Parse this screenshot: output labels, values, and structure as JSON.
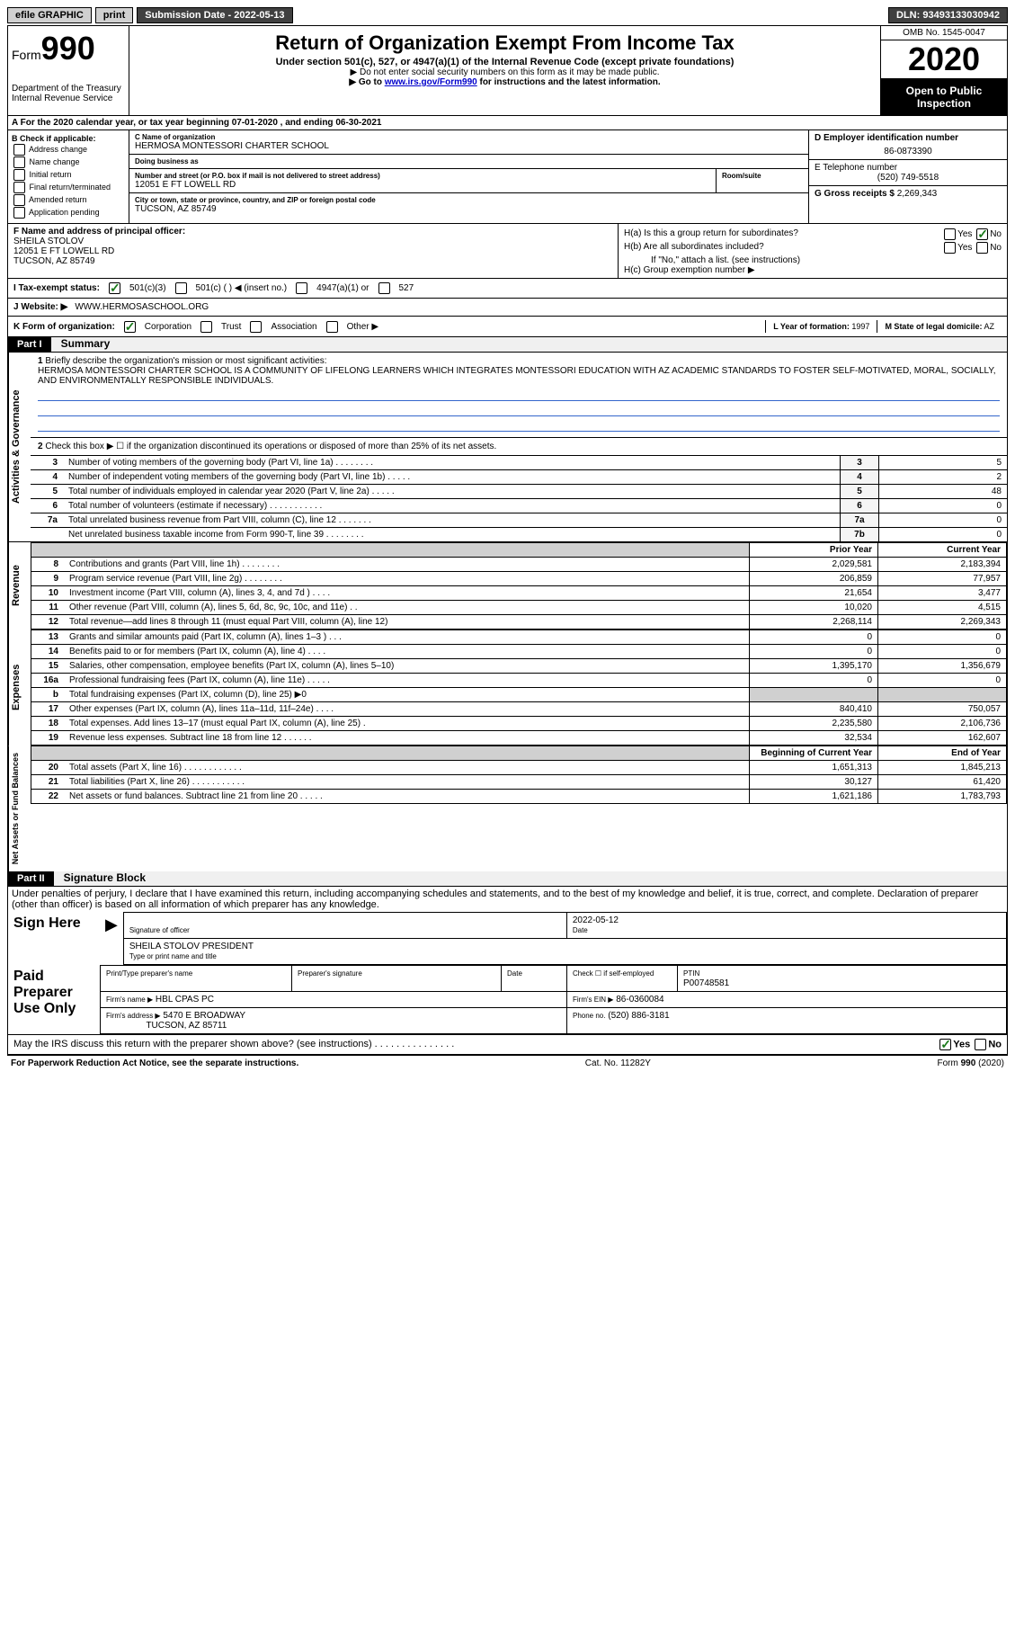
{
  "topbar": {
    "efile": "efile GRAPHIC",
    "print": "print",
    "submission": "Submission Date - 2022-05-13",
    "dln": "DLN: 93493133030942"
  },
  "header": {
    "form_prefix": "Form",
    "form_number": "990",
    "dept": "Department of the Treasury\nInternal Revenue Service",
    "title": "Return of Organization Exempt From Income Tax",
    "subtitle": "Under section 501(c), 527, or 4947(a)(1) of the Internal Revenue Code (except private foundations)",
    "note1": "▶ Do not enter social security numbers on this form as it may be made public.",
    "note2_pre": "▶ Go to ",
    "note2_link": "www.irs.gov/Form990",
    "note2_post": " for instructions and the latest information.",
    "omb": "OMB No. 1545-0047",
    "year": "2020",
    "open": "Open to Public Inspection"
  },
  "rowA": "A For the 2020 calendar year, or tax year beginning 07-01-2020  , and ending 06-30-2021",
  "boxB": {
    "heading": "B Check if applicable:",
    "opts": [
      "Address change",
      "Name change",
      "Initial return",
      "Final return/terminated",
      "Amended return",
      "Application pending"
    ]
  },
  "org": {
    "name_label": "C Name of organization",
    "name": "HERMOSA MONTESSORI CHARTER SCHOOL",
    "dba_label": "Doing business as",
    "dba": "",
    "addr_label": "Number and street (or P.O. box if mail is not delivered to street address)",
    "suite_label": "Room/suite",
    "street": "12051 E FT LOWELL RD",
    "city_label": "City or town, state or province, country, and ZIP or foreign postal code",
    "city": "TUCSON, AZ  85749"
  },
  "boxD": {
    "label": "D Employer identification number",
    "val": "86-0873390"
  },
  "boxE": {
    "label": "E Telephone number",
    "val": "(520) 749-5518"
  },
  "boxG": {
    "label": "G Gross receipts $",
    "val": "2,269,343"
  },
  "boxF": {
    "label": "F Name and address of principal officer:",
    "name": "SHEILA STOLOV",
    "street": "12051 E FT LOWELL RD",
    "city": "TUCSON, AZ  85749"
  },
  "boxH": {
    "a": "H(a)  Is this a group return for subordinates?",
    "b": "H(b)  Are all subordinates included?",
    "bnote": "If \"No,\" attach a list. (see instructions)",
    "c": "H(c)  Group exemption number ▶"
  },
  "status": {
    "label": "I   Tax-exempt status:",
    "o1": "501(c)(3)",
    "o2": "501(c) (  ) ◀ (insert no.)",
    "o3": "4947(a)(1) or",
    "o4": "527"
  },
  "website": {
    "label": "J   Website: ▶",
    "val": "WWW.HERMOSASCHOOL.ORG"
  },
  "korg": {
    "label": "K Form of organization:",
    "opts": [
      "Corporation",
      "Trust",
      "Association",
      "Other ▶"
    ],
    "yof_label": "L Year of formation:",
    "yof": "1997",
    "state_label": "M State of legal domicile:",
    "state": "AZ"
  },
  "part1": {
    "header": "Part I",
    "title": "Summary",
    "side_gov": "Activities & Governance",
    "side_rev": "Revenue",
    "side_exp": "Expenses",
    "side_net": "Net Assets or Fund Balances",
    "q1": "Briefly describe the organization's mission or most significant activities:",
    "mission": "HERMOSA MONTESSORI CHARTER SCHOOL IS A COMMUNITY OF LIFELONG LEARNERS WHICH INTEGRATES MONTESSORI EDUCATION WITH AZ ACADEMIC STANDARDS TO FOSTER SELF-MOTIVATED, MORAL, SOCIALLY, AND ENVIRONMENTALLY RESPONSIBLE INDIVIDUALS.",
    "q2": "Check this box ▶ ☐  if the organization discontinued its operations or disposed of more than 25% of its net assets.",
    "lines_gov": [
      {
        "n": "3",
        "t": "Number of voting members of the governing body (Part VI, line 1a)   .   .   .   .   .   .   .   .",
        "b": "3",
        "v": "5"
      },
      {
        "n": "4",
        "t": "Number of independent voting members of the governing body (Part VI, line 1b)   .   .   .   .   .",
        "b": "4",
        "v": "2"
      },
      {
        "n": "5",
        "t": "Total number of individuals employed in calendar year 2020 (Part V, line 2a)   .   .   .   .   .",
        "b": "5",
        "v": "48"
      },
      {
        "n": "6",
        "t": "Total number of volunteers (estimate if necessary)   .   .   .   .   .   .   .   .   .   .   .",
        "b": "6",
        "v": "0"
      },
      {
        "n": "7a",
        "t": "Total unrelated business revenue from Part VIII, column (C), line 12   .   .   .   .   .   .   .",
        "b": "7a",
        "v": "0"
      },
      {
        "n": "",
        "t": "Net unrelated business taxable income from Form 990-T, line 39   .   .   .   .   .   .   .   .",
        "b": "7b",
        "v": "0"
      }
    ],
    "col_prior": "Prior Year",
    "col_current": "Current Year",
    "lines_rev": [
      {
        "n": "8",
        "t": "Contributions and grants (Part VIII, line 1h)   .   .   .   .   .   .   .   .",
        "p": "2,029,581",
        "c": "2,183,394"
      },
      {
        "n": "9",
        "t": "Program service revenue (Part VIII, line 2g)   .   .   .   .   .   .   .   .",
        "p": "206,859",
        "c": "77,957"
      },
      {
        "n": "10",
        "t": "Investment income (Part VIII, column (A), lines 3, 4, and 7d )   .   .   .   .",
        "p": "21,654",
        "c": "3,477"
      },
      {
        "n": "11",
        "t": "Other revenue (Part VIII, column (A), lines 5, 6d, 8c, 9c, 10c, and 11e)   .   .",
        "p": "10,020",
        "c": "4,515"
      },
      {
        "n": "12",
        "t": "Total revenue—add lines 8 through 11 (must equal Part VIII, column (A), line 12)",
        "p": "2,268,114",
        "c": "2,269,343"
      }
    ],
    "lines_exp": [
      {
        "n": "13",
        "t": "Grants and similar amounts paid (Part IX, column (A), lines 1–3 )   .   .   .",
        "p": "0",
        "c": "0"
      },
      {
        "n": "14",
        "t": "Benefits paid to or for members (Part IX, column (A), line 4)   .   .   .   .",
        "p": "0",
        "c": "0"
      },
      {
        "n": "15",
        "t": "Salaries, other compensation, employee benefits (Part IX, column (A), lines 5–10)",
        "p": "1,395,170",
        "c": "1,356,679"
      },
      {
        "n": "16a",
        "t": "Professional fundraising fees (Part IX, column (A), line 11e)   .   .   .   .   .",
        "p": "0",
        "c": "0"
      },
      {
        "n": "b",
        "t": "Total fundraising expenses (Part IX, column (D), line 25) ▶0",
        "p": "",
        "c": "",
        "shade": true
      },
      {
        "n": "17",
        "t": "Other expenses (Part IX, column (A), lines 11a–11d, 11f–24e)   .   .   .   .",
        "p": "840,410",
        "c": "750,057"
      },
      {
        "n": "18",
        "t": "Total expenses. Add lines 13–17 (must equal Part IX, column (A), line 25)   .",
        "p": "2,235,580",
        "c": "2,106,736"
      },
      {
        "n": "19",
        "t": "Revenue less expenses. Subtract line 18 from line 12   .   .   .   .   .   .",
        "p": "32,534",
        "c": "162,607"
      }
    ],
    "col_begin": "Beginning of Current Year",
    "col_end": "End of Year",
    "lines_net": [
      {
        "n": "20",
        "t": "Total assets (Part X, line 16)   .   .   .   .   .   .   .   .   .   .   .   .",
        "p": "1,651,313",
        "c": "1,845,213"
      },
      {
        "n": "21",
        "t": "Total liabilities (Part X, line 26)   .   .   .   .   .   .   .   .   .   .   .",
        "p": "30,127",
        "c": "61,420"
      },
      {
        "n": "22",
        "t": "Net assets or fund balances. Subtract line 21 from line 20   .   .   .   .   .",
        "p": "1,621,186",
        "c": "1,783,793"
      }
    ]
  },
  "part2": {
    "header": "Part II",
    "title": "Signature Block",
    "declare": "Under penalties of perjury, I declare that I have examined this return, including accompanying schedules and statements, and to the best of my knowledge and belief, it is true, correct, and complete. Declaration of preparer (other than officer) is based on all information of which preparer has any knowledge.",
    "sign_here": "Sign Here",
    "sig_officer": "Signature of officer",
    "sig_date": "Date",
    "sig_date_val": "2022-05-12",
    "sig_name_label": "Type or print name and title",
    "sig_name": "SHEILA STOLOV PRESIDENT",
    "paid": "Paid Preparer Use Only",
    "prep_name_label": "Print/Type preparer's name",
    "prep_sig_label": "Preparer's signature",
    "prep_date_label": "Date",
    "prep_check": "Check ☐ if self-employed",
    "ptin_label": "PTIN",
    "ptin": "P00748581",
    "firm_name_label": "Firm's name  ▶",
    "firm_name": "HBL CPAS PC",
    "firm_ein_label": "Firm's EIN ▶",
    "firm_ein": "86-0360084",
    "firm_addr_label": "Firm's address ▶",
    "firm_addr": "5470 E BROADWAY",
    "firm_city": "TUCSON, AZ  85711",
    "phone_label": "Phone no.",
    "phone": "(520) 886-3181",
    "discuss": "May the IRS discuss this return with the preparer shown above? (see instructions)   .   .   .   .   .   .   .   .   .   .   .   .   .   .   .",
    "yes": "Yes",
    "no": "No"
  },
  "footer": {
    "left": "For Paperwork Reduction Act Notice, see the separate instructions.",
    "mid": "Cat. No. 11282Y",
    "right": "Form 990 (2020)"
  }
}
